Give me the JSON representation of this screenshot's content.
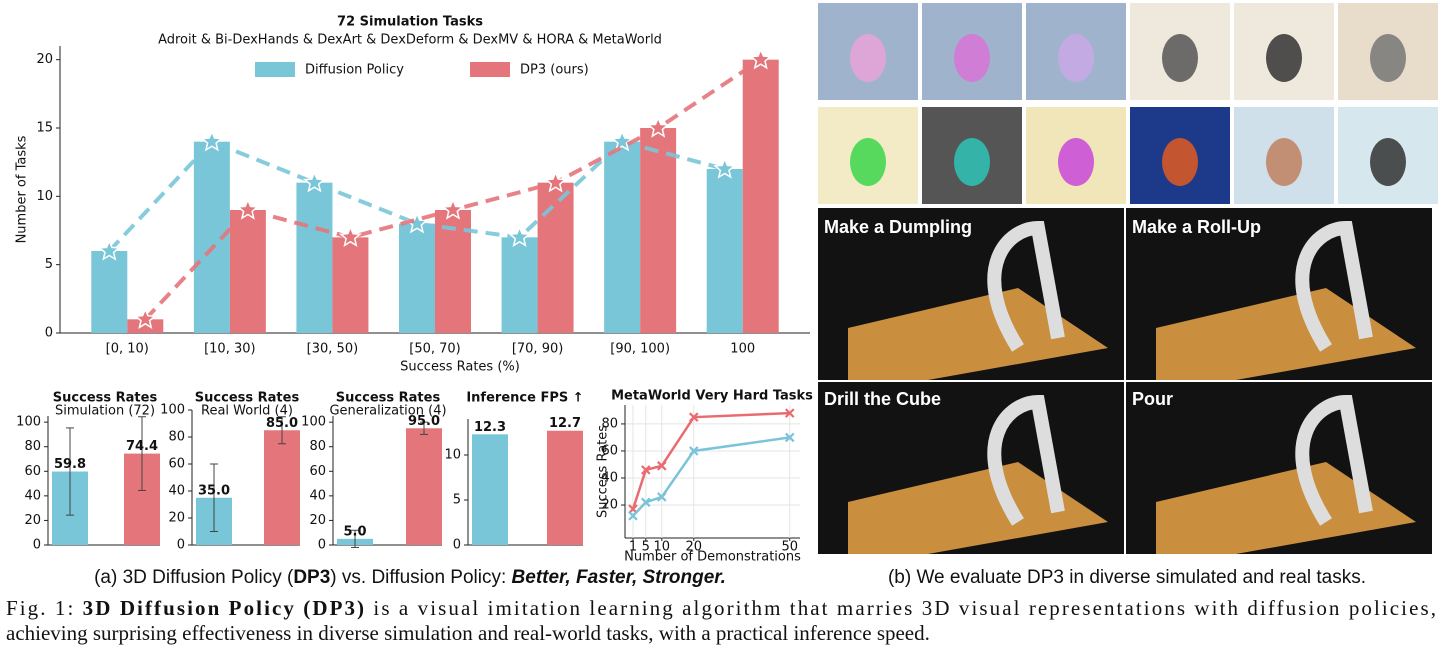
{
  "chart_data": [
    {
      "type": "bar",
      "title": "72 Simulation Tasks",
      "subtitle": "Adroit & Bi-DexHands & DexArt & DexDeform & DexMV & HORA & MetaWorld",
      "categories": [
        "[0, 10)",
        "[10, 30)",
        "[30, 50)",
        "[50, 70)",
        "[70, 90)",
        "[90, 100)",
        "100"
      ],
      "series": [
        {
          "name": "Diffusion Policy",
          "color": "#79c6d9",
          "values": [
            6,
            14,
            11,
            8,
            7,
            14,
            12
          ]
        },
        {
          "name": "DP3 (ours)",
          "color": "#e4767b",
          "values": [
            1,
            9,
            7,
            9,
            11,
            15,
            20
          ]
        }
      ],
      "overlay_lines": true,
      "x_label": "Success Rates (%)",
      "y_label": "Number of Tasks",
      "ylim": [
        0,
        21
      ],
      "yticks": [
        0,
        5,
        10,
        15,
        20
      ],
      "grid": false
    },
    {
      "type": "bar",
      "title": "Success Rates",
      "subtitle": "Simulation (72)",
      "values": [
        59.8,
        74.4
      ],
      "errors": [
        35.5,
        30
      ],
      "colors": [
        "#79c6d9",
        "#e4767b"
      ],
      "ylim": [
        0,
        105
      ],
      "yticks": [
        0,
        20,
        40,
        60,
        80,
        100
      ]
    },
    {
      "type": "bar",
      "title": "Success Rates",
      "subtitle": "Real World (4)",
      "values": [
        35,
        85
      ],
      "value_labels": [
        "35.0",
        "85.0"
      ],
      "errors": [
        25,
        10
      ],
      "colors": [
        "#79c6d9",
        "#e4767b"
      ],
      "ylim": [
        0,
        100
      ],
      "yticks": [
        0,
        20,
        40,
        60,
        80,
        100
      ]
    },
    {
      "type": "bar",
      "title": "Success Rates",
      "subtitle": "Generalization (4)",
      "values": [
        5,
        95
      ],
      "value_labels": [
        "5.0",
        "95.0"
      ],
      "errors": [
        7,
        5
      ],
      "colors": [
        "#79c6d9",
        "#e4767b"
      ],
      "ylim": [
        0,
        105
      ],
      "yticks": [
        0,
        20,
        40,
        60,
        80,
        100
      ]
    },
    {
      "type": "bar",
      "title": "Inference FPS ↑",
      "values": [
        12.3,
        12.7
      ],
      "colors": [
        "#79c6d9",
        "#e4767b"
      ],
      "ylim": [
        0,
        14
      ],
      "yticks": [
        0,
        5,
        10
      ]
    },
    {
      "type": "line",
      "title": "MetaWorld Very Hard Tasks",
      "x": [
        1,
        5,
        10,
        20,
        50
      ],
      "series": [
        {
          "color": "#ea6b6f",
          "values": [
            17,
            46,
            49,
            85,
            88
          ]
        },
        {
          "color": "#7ac3d9",
          "values": [
            12,
            22,
            26,
            60,
            70
          ]
        }
      ],
      "x_label": "Number of Demonstrations",
      "y_label": "Success Rates",
      "xlim": [
        -1.5,
        53.2
      ],
      "xticks": [
        1,
        5,
        10,
        20,
        50
      ],
      "ylim": [
        -4.4,
        94
      ],
      "yticks": [
        20,
        40,
        60,
        80
      ],
      "grid": true
    }
  ],
  "real_tasks": [
    "Make a Dumpling",
    "Make a Roll-Up",
    "Drill the Cube",
    "Pour"
  ],
  "caption_a": [
    "(a) 3D Diffusion Policy (",
    "DP3",
    ") vs. Diffusion Policy: ",
    "Better, Faster, Stronger."
  ],
  "caption_b": "(b) We evaluate DP3 in diverse simulated and real tasks.",
  "figure_caption": {
    "label": "Fig. 1:",
    "bold": "3D Diffusion Policy (DP3)",
    "line1": "is a visual imitation learning algorithm that marries 3D visual representations with diffusion policies,",
    "line2": "achieving surprising effectiveness in diverse simulation and real-world tasks, with a practical inference speed."
  }
}
